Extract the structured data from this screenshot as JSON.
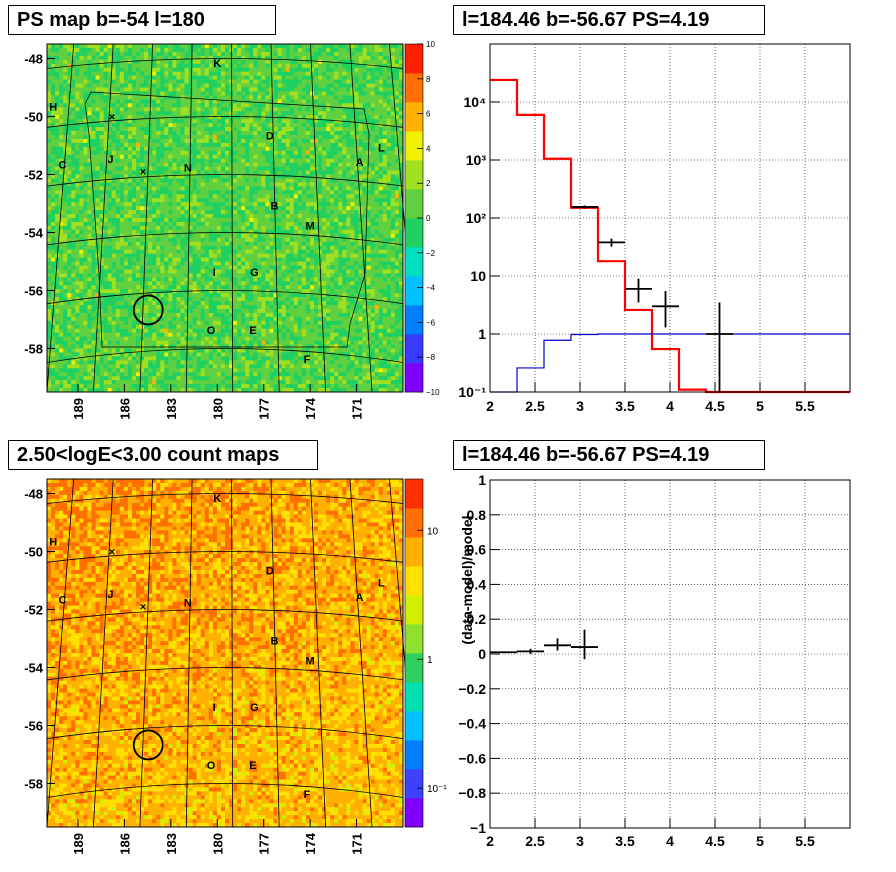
{
  "panels": {
    "ps_map": {
      "title": "PS map b=-54 l=180",
      "y_ticks": [
        "-48",
        "-50",
        "-52",
        "-54",
        "-56",
        "-58"
      ],
      "x_ticks": [
        "189",
        "186",
        "183",
        "180",
        "177",
        "174",
        "171"
      ],
      "colorbar_ticks": [
        "10",
        "8",
        "6",
        "4",
        "2",
        "0",
        "−2",
        "−4",
        "−6",
        "−8",
        "−10"
      ],
      "zlim": [
        -10,
        10
      ],
      "colormap": [
        "#7f00ff",
        "#3a3aff",
        "#0080ff",
        "#00c0ff",
        "#00e0c0",
        "#20d060",
        "#60d040",
        "#a0e020",
        "#f0f000",
        "#ffb000",
        "#ff7000",
        "#ff2000"
      ],
      "labels": [
        "K",
        "H",
        "D",
        "L",
        "C",
        "J",
        "N",
        "A",
        "B",
        "M",
        "I",
        "G",
        "O",
        "E",
        "F"
      ]
    },
    "count_map": {
      "title": "2.50<logE<3.00 count maps",
      "y_ticks": [
        "-48",
        "-50",
        "-52",
        "-54",
        "-56",
        "-58"
      ],
      "x_ticks": [
        "189",
        "186",
        "183",
        "180",
        "177",
        "174",
        "171"
      ],
      "colorbar_ticks": [
        "10",
        "1",
        "10⁻¹"
      ],
      "labels": [
        "K",
        "H",
        "D",
        "L",
        "C",
        "J",
        "N",
        "A",
        "B",
        "M",
        "I",
        "G",
        "O",
        "E",
        "F"
      ]
    },
    "spectrum": {
      "title": "l=184.46 b=-56.67 PS=4.19"
    },
    "residual": {
      "title": "l=184.46 b=-56.67 PS=4.19"
    }
  },
  "chart_data": [
    {
      "type": "heatmap",
      "title": "PS map b=-54 l=180",
      "xlim": [
        191,
        168
      ],
      "ylim": [
        -59.5,
        -47.5
      ],
      "zlim": [
        -10,
        10
      ],
      "typical_value": 0.5,
      "x_ticks": [
        189,
        186,
        183,
        180,
        177,
        174,
        171
      ],
      "y_ticks": [
        -48,
        -50,
        -52,
        -54,
        -56,
        -58
      ],
      "source_circle": {
        "l": 184.46,
        "b": -56.67
      },
      "sources": [
        {
          "label": "K",
          "l": 180.0,
          "b": -48.3
        },
        {
          "label": "H",
          "l": 190.6,
          "b": -49.8
        },
        {
          "label": "D",
          "l": 176.6,
          "b": -50.8
        },
        {
          "label": "L",
          "l": 169.4,
          "b": -51.2
        },
        {
          "label": "C",
          "l": 190.0,
          "b": -51.8
        },
        {
          "label": "J",
          "l": 186.9,
          "b": -51.6
        },
        {
          "label": "N",
          "l": 181.9,
          "b": -51.9
        },
        {
          "label": "A",
          "l": 170.8,
          "b": -51.7
        },
        {
          "label": "B",
          "l": 176.3,
          "b": -53.2
        },
        {
          "label": "M",
          "l": 174.0,
          "b": -53.9
        },
        {
          "label": "I",
          "l": 180.2,
          "b": -55.5
        },
        {
          "label": "G",
          "l": 177.6,
          "b": -55.5
        },
        {
          "label": "O",
          "l": 180.4,
          "b": -57.5
        },
        {
          "label": "E",
          "l": 177.7,
          "b": -57.5
        },
        {
          "label": "F",
          "l": 174.2,
          "b": -58.5
        }
      ]
    },
    {
      "type": "heatmap",
      "title": "2.50<logE<3.00 count maps",
      "xlim": [
        191,
        168
      ],
      "ylim": [
        -59.5,
        -47.5
      ],
      "z_scale": "log",
      "zlim": [
        0.05,
        25
      ],
      "typical_value": 6,
      "x_ticks": [
        189,
        186,
        183,
        180,
        177,
        174,
        171
      ],
      "y_ticks": [
        -48,
        -50,
        -52,
        -54,
        -56,
        -58
      ]
    },
    {
      "type": "line",
      "title": "l=184.46 b=-56.67 PS=4.19",
      "xlim": [
        2,
        6
      ],
      "ylim": [
        0.1,
        100000
      ],
      "y_scale": "log",
      "x_ticks": [
        2,
        2.5,
        3,
        3.5,
        4,
        4.5,
        5,
        5.5
      ],
      "y_ticks": [
        0.1,
        1,
        10,
        100,
        1000,
        10000
      ],
      "y_tick_labels": [
        "10⁻¹",
        "1",
        "10",
        "10²",
        "10³",
        "10⁴"
      ],
      "grid": true,
      "bin_edges": [
        2.0,
        2.3,
        2.6,
        2.9,
        3.2,
        3.5,
        3.8,
        4.1,
        4.4,
        6.0
      ],
      "series": [
        {
          "color": "#ff0000",
          "values": [
            24000,
            6000,
            1050,
            150,
            18,
            2.6,
            0.55,
            0.11,
            0.1
          ]
        },
        {
          "color": "#0000cc",
          "values": [
            0.1,
            0.26,
            0.78,
            0.98,
            1.0,
            1.0,
            1.0,
            1.0,
            1.0
          ]
        }
      ],
      "points": [
        {
          "x": 3.05,
          "y": 155,
          "xerr": 0.15,
          "ylo": 145,
          "yhi": 165
        },
        {
          "x": 3.35,
          "y": 38,
          "xerr": 0.15,
          "ylo": 32,
          "yhi": 44
        },
        {
          "x": 3.65,
          "y": 6,
          "xerr": 0.15,
          "ylo": 3.5,
          "yhi": 9
        },
        {
          "x": 3.95,
          "y": 3,
          "xerr": 0.15,
          "ylo": 1.3,
          "yhi": 5.5
        },
        {
          "x": 4.55,
          "y": 1,
          "xerr": 0.15,
          "ylo": 0.1,
          "yhi": 3.5
        }
      ]
    },
    {
      "type": "scatter",
      "title": "l=184.46 b=-56.67 PS=4.19",
      "ylabel": "(data-model)/model",
      "xlim": [
        2,
        6
      ],
      "ylim": [
        -1,
        1
      ],
      "x_ticks": [
        2,
        2.5,
        3,
        3.5,
        4,
        4.5,
        5,
        5.5
      ],
      "y_ticks": [
        -1,
        -0.8,
        -0.6,
        -0.4,
        -0.2,
        0,
        0.2,
        0.4,
        0.6,
        0.8,
        1
      ],
      "grid": true,
      "points": [
        {
          "x": 2.15,
          "y": 0.01,
          "xerr": 0.15,
          "ylo": 0.005,
          "yhi": 0.015
        },
        {
          "x": 2.45,
          "y": 0.015,
          "xerr": 0.15,
          "ylo": 0.0,
          "yhi": 0.03
        },
        {
          "x": 2.75,
          "y": 0.05,
          "xerr": 0.15,
          "ylo": 0.02,
          "yhi": 0.09
        },
        {
          "x": 3.05,
          "y": 0.04,
          "xerr": 0.15,
          "ylo": -0.03,
          "yhi": 0.14
        }
      ]
    }
  ]
}
